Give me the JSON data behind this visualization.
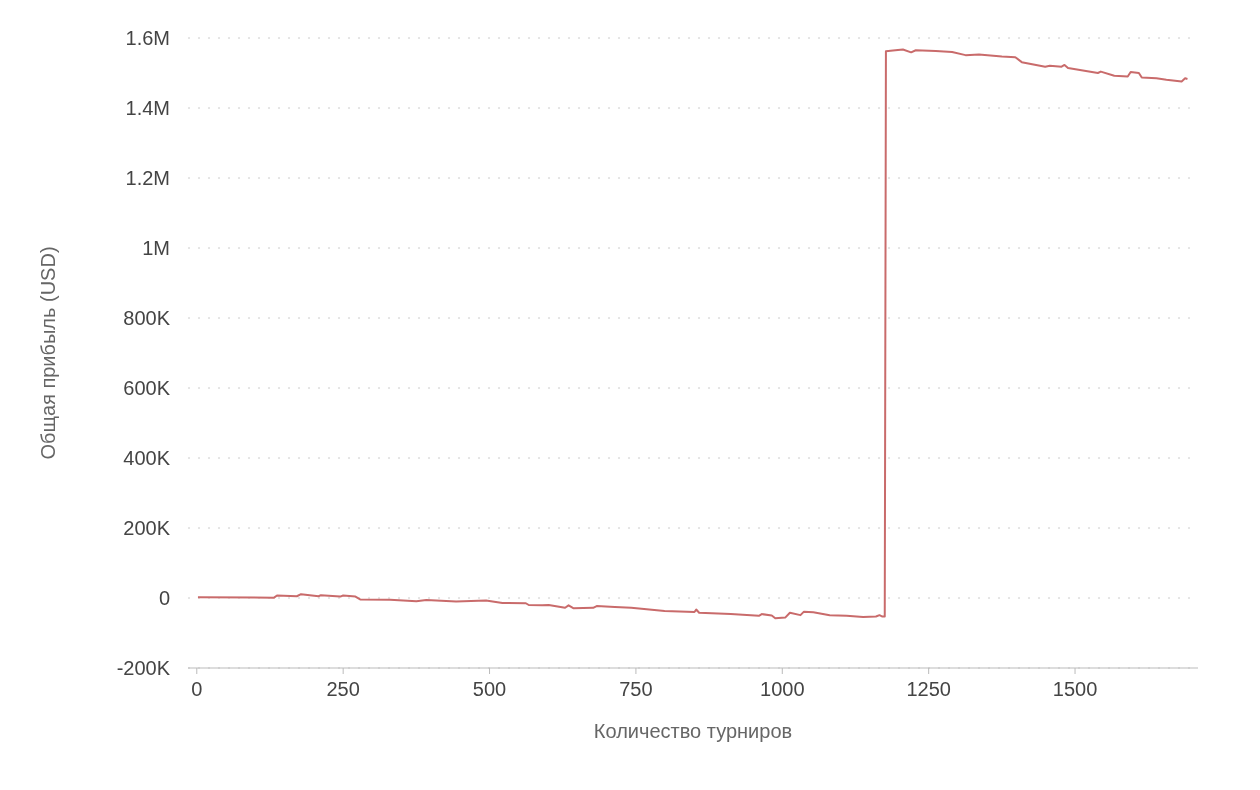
{
  "chart_data": {
    "type": "line",
    "xlabel": "Количество турниров",
    "ylabel": "Общая прибыль (USD)",
    "x": [
      2,
      132,
      137,
      171,
      178,
      208,
      212,
      245,
      250,
      271,
      279,
      330,
      375,
      392,
      443,
      494,
      522,
      562,
      567,
      590,
      601,
      629,
      635,
      643,
      677,
      683,
      714,
      742,
      799,
      850,
      853,
      858,
      912,
      960,
      965,
      982,
      988,
      1005,
      1013,
      1031,
      1037,
      1053,
      1081,
      1110,
      1138,
      1160,
      1166,
      1171,
      1175,
      1177,
      1189,
      1206,
      1220,
      1228,
      1262,
      1290,
      1313,
      1336,
      1375,
      1398,
      1409,
      1449,
      1457,
      1477,
      1482,
      1488,
      1539,
      1544,
      1567,
      1590,
      1595,
      1609,
      1614,
      1639,
      1656,
      1682,
      1688,
      1692
    ],
    "series": [
      {
        "color": "#c96b6b",
        "values": [
          2000,
          1000,
          7000,
          5000,
          11000,
          5000,
          8000,
          4000,
          7000,
          4000,
          -4000,
          -5000,
          -9000,
          -6000,
          -10000,
          -7000,
          -14000,
          -15000,
          -20000,
          -21000,
          -20000,
          -28000,
          -21000,
          -29000,
          -28000,
          -23000,
          -26000,
          -28000,
          -37000,
          -40000,
          -33000,
          -42000,
          -46000,
          -51000,
          -46000,
          -50000,
          -58000,
          -56000,
          -42000,
          -49000,
          -39000,
          -41000,
          -49000,
          -51000,
          -54000,
          -53000,
          -49000,
          -53000,
          -53000,
          1562000,
          1564000,
          1567000,
          1559000,
          1565000,
          1563000,
          1560000,
          1551000,
          1553000,
          1547000,
          1545000,
          1531000,
          1518000,
          1521000,
          1518000,
          1523000,
          1514000,
          1500000,
          1504000,
          1492000,
          1490000,
          1503000,
          1500000,
          1487000,
          1485000,
          1481000,
          1476000,
          1485000,
          1483000
        ]
      }
    ],
    "xlim": [
      -15,
      1710
    ],
    "xticks": [
      0,
      250,
      500,
      750,
      1000,
      1250,
      1500
    ],
    "ylim": [
      -200000,
      1600000
    ],
    "yticks": [
      {
        "value": -200000,
        "label": "-200K"
      },
      0,
      {
        "value": 200000,
        "label": "200K"
      },
      {
        "value": 400000,
        "label": "400K"
      },
      {
        "value": 600000,
        "label": "600K"
      },
      {
        "value": 800000,
        "label": "800K"
      },
      {
        "value": 1000000,
        "label": "1M"
      },
      {
        "value": 1200000,
        "label": "1.2M"
      },
      {
        "value": 1400000,
        "label": "1.4M"
      },
      {
        "value": 1600000,
        "label": "1.6M"
      }
    ],
    "grid": "y",
    "legend": false,
    "marker": "none",
    "line_style": "solid"
  }
}
